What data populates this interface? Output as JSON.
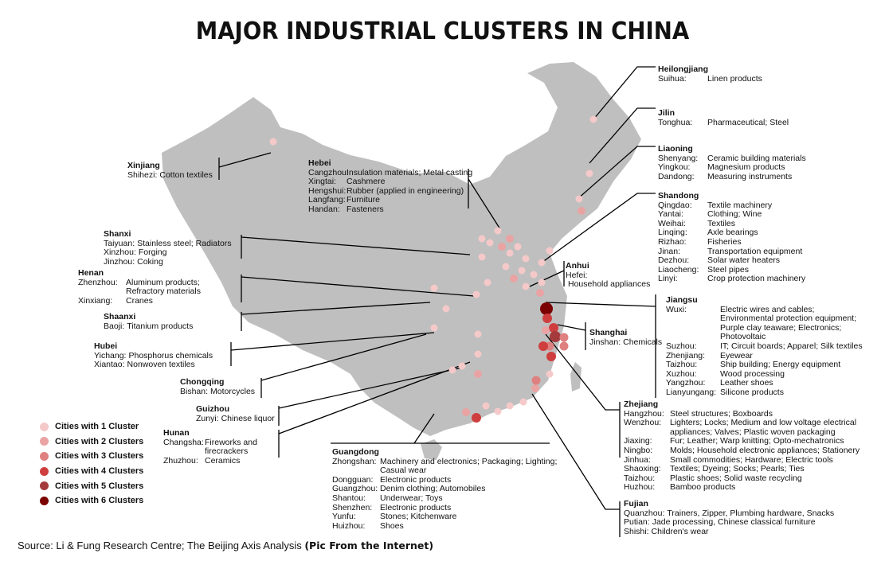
{
  "title": "MAJOR INDUSTRIAL CLUSTERS IN CHINA",
  "colors": {
    "map": "#bfbfbf",
    "line": "#000000",
    "c1": "#f5c9c9",
    "c2": "#eaa3a3",
    "c3": "#df8080",
    "c4": "#cf3e3e",
    "c5": "#a43a3c",
    "c6": "#7b0000"
  },
  "legend": [
    "Cities with 1 Cluster",
    "Cities with 2 Clusters",
    "Cities with 3 Clusters",
    "Cities with 4 Clusters",
    "Cities with 5 Clusters",
    "Cities with 6 Clusters"
  ],
  "dot_clusters": [
    1,
    1,
    1,
    1,
    2,
    1,
    1,
    1,
    1,
    2,
    2,
    1,
    1,
    1,
    1,
    1,
    1,
    1,
    2,
    1,
    1,
    1,
    1,
    1,
    1,
    6,
    4,
    2,
    4,
    5,
    3,
    3,
    3,
    2,
    4,
    4,
    1,
    1,
    1,
    1,
    1,
    2,
    1,
    1,
    2,
    3,
    4,
    1,
    1,
    1,
    1,
    2
  ],
  "provinces": {
    "heilongjiang": {
      "name": "Heilongjiang",
      "cw": 62,
      "items": [
        [
          "Suihua:",
          "Linen products"
        ]
      ]
    },
    "jilin": {
      "name": "Jilin",
      "cw": 62,
      "items": [
        [
          "Tonghua:",
          "Pharmaceutical; Steel"
        ]
      ]
    },
    "liaoning": {
      "name": "Liaoning",
      "cw": 62,
      "items": [
        [
          "Shenyang:",
          "Ceramic building materials"
        ],
        [
          "Yingkou:",
          "Magnesium products"
        ],
        [
          "Dandong:",
          "Measuring instruments"
        ]
      ]
    },
    "shandong": {
      "name": "Shandong",
      "cw": 62,
      "items": [
        [
          "Qingdao:",
          "Textile machinery"
        ],
        [
          "Yantai:",
          "Clothing; Wine"
        ],
        [
          "Weihai:",
          "Textiles"
        ],
        [
          "Linqing:",
          "Axle bearings"
        ],
        [
          "Rizhao:",
          "Fisheries"
        ],
        [
          "Jinan:",
          "Transportation equipment"
        ],
        [
          "Dezhou:",
          "Solar water heaters"
        ],
        [
          "Liaocheng:",
          "Steel pipes"
        ],
        [
          "Linyi:",
          "Crop protection machinery"
        ]
      ]
    },
    "anhui": {
      "name": "Anhui",
      "cw": 0,
      "items": [
        [
          "Hefei:",
          ""
        ],
        [
          "",
          "Household appliances"
        ]
      ]
    },
    "jiangsu": {
      "name": "Jiangsu",
      "cw": 68,
      "items": [
        [
          "Wuxi:",
          "Electric wires and cables; Environmental protection equipment; Purple clay teaware; Electronics; Photovoltaic"
        ],
        [
          "Suzhou:",
          "IT; Circuit boards; Apparel; Silk textiles"
        ],
        [
          "Zhenjiang:",
          "Eyewear"
        ],
        [
          "Taizhou:",
          "Ship building; Energy equipment"
        ],
        [
          "Xuzhou:",
          "Wood processing"
        ],
        [
          "Yangzhou:",
          "Leather shoes"
        ],
        [
          "Lianyungang:",
          "Silicone products"
        ]
      ]
    },
    "shanghai": {
      "name": "Shanghai",
      "cw": 0,
      "items": [
        [
          "Jinshan:",
          "Chemicals"
        ]
      ]
    },
    "zhejiang": {
      "name": "Zhejiang",
      "cw": 58,
      "items": [
        [
          "Hangzhou:",
          "Steel structures; Boxboards"
        ],
        [
          "Wenzhou:",
          "Lighters; Locks; Medium and low voltage electrical appliances; Valves; Plastic woven packaging"
        ],
        [
          "Jiaxing:",
          "Fur; Leather; Warp knitting; Opto-mechatronics"
        ],
        [
          "Ningbo:",
          "Molds; Household electronic appliances; Stationery"
        ],
        [
          "Jinhua:",
          "Small commodities; Hardware; Electric tools"
        ],
        [
          "Shaoxing:",
          "Textiles; Dyeing; Socks; Pearls; Ties"
        ],
        [
          "Taizhou:",
          "Plastic shoes; Solid waste recycling"
        ],
        [
          "Huzhou:",
          "Bamboo products"
        ]
      ]
    },
    "fujian": {
      "name": "Fujian",
      "cw": 0,
      "items": [
        [
          "Quanzhou:",
          "Trainers, Zipper,  Plumbing hardware, Snacks"
        ],
        [
          "Putian:",
          "Jade processing, Chinese classical furniture"
        ],
        [
          "Shishi:",
          "Children's wear"
        ]
      ]
    },
    "guangdong": {
      "name": "Guangdong",
      "cw": 60,
      "items": [
        [
          "Zhongshan:",
          "Machinery and electronics; Packaging; Lighting; Casual wear"
        ],
        [
          "Dongguan:",
          "Electronic products"
        ],
        [
          "Guangzhou:",
          "Denim clothing; Automobiles"
        ],
        [
          "Shantou:",
          "Underwear; Toys"
        ],
        [
          "Shenzhen:",
          "Electronic products"
        ],
        [
          "Yunfu:",
          "Stones; Kitchenware"
        ],
        [
          "Huizhou:",
          "Shoes"
        ]
      ]
    },
    "xinjiang": {
      "name": "Xinjiang",
      "cw": 0,
      "items": [
        [
          "Shihezi:",
          "Cotton textiles"
        ]
      ]
    },
    "hebei": {
      "name": "Hebei",
      "cw": 48,
      "items": [
        [
          "Cangzhou:",
          "Insulation materials; Metal casting"
        ],
        [
          "Xingtai:",
          "Cashmere"
        ],
        [
          "Hengshui:",
          "Rubber (applied in engineering)"
        ],
        [
          "Langfang:",
          "Furniture"
        ],
        [
          "Handan:",
          "Fasteners"
        ]
      ]
    },
    "shanxi": {
      "name": "Shanxi",
      "cw": 0,
      "items": [
        [
          "Taiyuan:",
          "Stainless steel; Radiators"
        ],
        [
          "Xinzhou:",
          "Forging"
        ],
        [
          "Jinzhou:",
          "Coking"
        ]
      ]
    },
    "henan": {
      "name": "Henan",
      "cw": 60,
      "items": [
        [
          "Zhenzhou:",
          "Aluminum products; Refractory materials"
        ],
        [
          "Xinxiang:",
          "Cranes"
        ]
      ]
    },
    "shaanxi": {
      "name": "Shaanxi",
      "cw": 0,
      "items": [
        [
          "Baoji:",
          "Titanium products"
        ]
      ]
    },
    "hubei": {
      "name": "Hubei",
      "cw": 0,
      "items": [
        [
          "Yichang:",
          "Phosphorus chemicals"
        ],
        [
          "Xiantao:",
          "Nonwoven textiles"
        ]
      ]
    },
    "chongqing": {
      "name": "Chongqing",
      "cw": 0,
      "items": [
        [
          "Bishan:",
          "Motorcycles"
        ]
      ]
    },
    "guizhou": {
      "name": "Guizhou",
      "cw": 0,
      "items": [
        [
          "Zunyi:",
          "Chinese liquor"
        ]
      ]
    },
    "hunan": {
      "name": "Hunan",
      "cw": 52,
      "items": [
        [
          "Changsha:",
          "Fireworks and firecrackers"
        ],
        [
          "Zhuzhou:",
          "Ceramics"
        ]
      ]
    }
  },
  "source": {
    "text": "Source: Li & Fung Research Centre; The Beijing Axis Analysis ",
    "note": "(Pic From the Internet)"
  }
}
